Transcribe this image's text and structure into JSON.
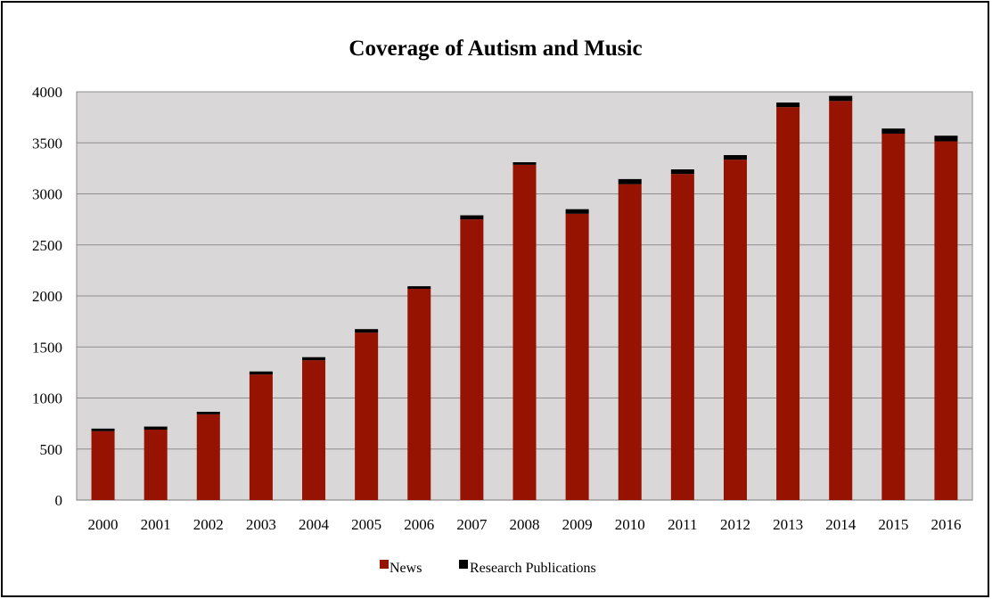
{
  "chart_data": {
    "type": "bar",
    "stacked": true,
    "title": "Coverage of Autism and Music",
    "xlabel": "",
    "ylabel": "",
    "ylim": [
      0,
      4000
    ],
    "yticks": [
      0,
      500,
      1000,
      1500,
      2000,
      2500,
      3000,
      3500,
      4000
    ],
    "grid": true,
    "legend_position": "bottom",
    "categories": [
      "2000",
      "2001",
      "2002",
      "2003",
      "2004",
      "2005",
      "2006",
      "2007",
      "2008",
      "2009",
      "2010",
      "2011",
      "2012",
      "2013",
      "2014",
      "2015",
      "2016"
    ],
    "series": [
      {
        "name": "News",
        "color": "#951300",
        "values": [
          675,
          690,
          840,
          1230,
          1370,
          1640,
          2070,
          2750,
          3285,
          2805,
          3095,
          3195,
          3335,
          3850,
          3910,
          3590,
          3515
        ]
      },
      {
        "name": "Research Publications",
        "color": "#000000",
        "values": [
          25,
          30,
          25,
          30,
          30,
          35,
          25,
          40,
          25,
          45,
          50,
          45,
          45,
          45,
          50,
          50,
          55
        ]
      }
    ],
    "plot_background": "#d9d7d8"
  }
}
